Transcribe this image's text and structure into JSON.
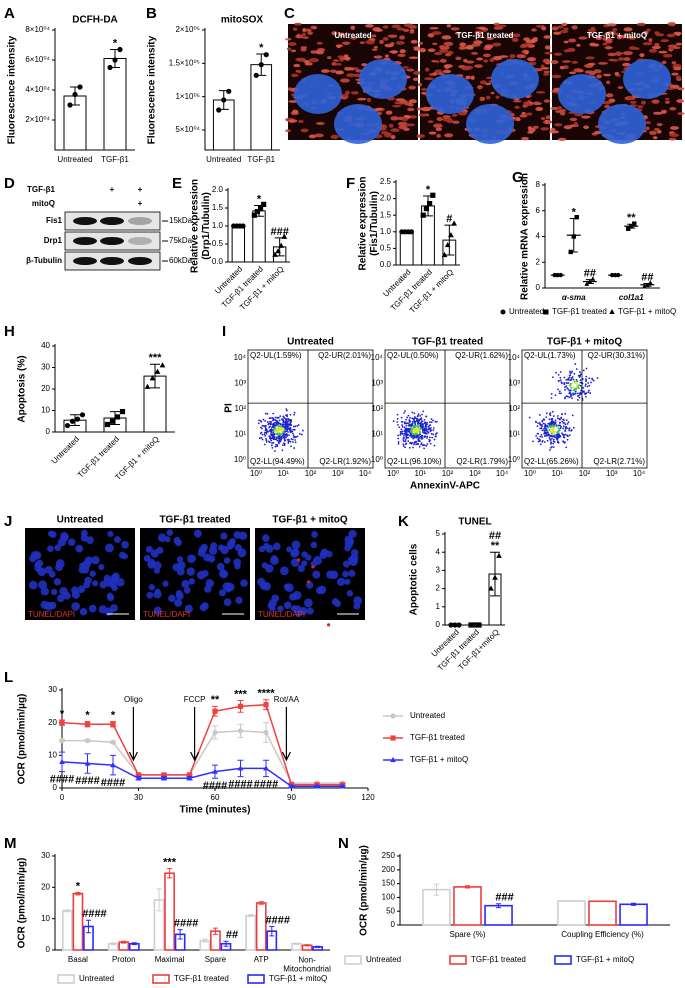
{
  "chart_data": [
    {
      "type": "bar",
      "panel": "A",
      "title": "DCFH-DA",
      "ylabel": "Fluorescence intensity",
      "categories": [
        "Untreated",
        "TGF-β1"
      ],
      "values": [
        36000,
        61000
      ],
      "errors": [
        6000,
        6000
      ],
      "points": [
        [
          30000,
          37000,
          42000
        ],
        [
          55000,
          60000,
          67000
        ]
      ],
      "markers": [
        "circle",
        "circle"
      ],
      "annotations": [
        null,
        "*"
      ],
      "ylim": [
        0,
        80000
      ],
      "yticks": [
        {
          "value": 20000,
          "label": "2×10⁰⁴"
        },
        {
          "value": 40000,
          "label": "4×10⁰⁴"
        },
        {
          "value": 60000,
          "label": "6×10⁰⁴"
        },
        {
          "value": 80000,
          "label": "8×10⁰⁴"
        }
      ],
      "color": "#000000"
    },
    {
      "type": "bar",
      "panel": "B",
      "title": "mitoSOX",
      "ylabel": "Fluorescence intensity",
      "categories": [
        "Untreated",
        "TGF-β1"
      ],
      "values": [
        95000,
        148000
      ],
      "errors": [
        14000,
        16000
      ],
      "points": [
        [
          80000,
          95000,
          108000
        ],
        [
          132000,
          148000,
          163000
        ]
      ],
      "markers": [
        "circle",
        "circle"
      ],
      "annotations": [
        null,
        "*"
      ],
      "ylim": [
        20000,
        200000
      ],
      "yticks": [
        {
          "value": 50000,
          "label": "5×10⁰⁴"
        },
        {
          "value": 100000,
          "label": "1×10⁰⁵"
        },
        {
          "value": 150000,
          "label": "1.5×10⁰⁵"
        },
        {
          "value": 200000,
          "label": "2×10⁰⁵"
        }
      ],
      "color": "#000000"
    },
    {
      "type": "bar",
      "panel": "E",
      "ylabel": "Relative expression\n(Drp1/Tubulin)",
      "categories": [
        "Untreated",
        "TGF-β1 treated",
        "TGF-β1 + mitoQ"
      ],
      "values": [
        1,
        1.42,
        0.42
      ],
      "errors": [
        0,
        0.15,
        0.25
      ],
      "points": [
        [
          1,
          1,
          1,
          1
        ],
        [
          1.3,
          1.4,
          1.5,
          1.6
        ],
        [
          0.2,
          0.3,
          0.45,
          0.7
        ]
      ],
      "markers": [
        "circle",
        "square",
        "triangle"
      ],
      "annotations": [
        null,
        "*",
        "###"
      ],
      "ylim": [
        0,
        2
      ],
      "yticks": [
        {
          "value": 0,
          "label": "0.0"
        },
        0.5,
        {
          "value": 1,
          "label": "1.0"
        },
        1.5,
        {
          "value": 2,
          "label": "2.0"
        }
      ],
      "color": "#000000"
    },
    {
      "type": "bar",
      "panel": "F",
      "ylabel": "Relative expression\n(Fis1/Tubulin)",
      "categories": [
        "Untreated",
        "TGF-β1 treated",
        "TGF-β1 + mitoQ"
      ],
      "values": [
        1,
        1.78,
        0.75
      ],
      "errors": [
        0,
        0.3,
        0.45
      ],
      "points": [
        [
          1,
          1,
          1,
          1
        ],
        [
          1.5,
          1.7,
          1.85,
          2.1
        ],
        [
          0.3,
          0.6,
          0.9,
          1.25
        ]
      ],
      "markers": [
        "circle",
        "square",
        "triangle"
      ],
      "annotations": [
        null,
        "*",
        "#"
      ],
      "ylim": [
        0,
        2.5
      ],
      "yticks": [
        {
          "value": 0,
          "label": "0.0"
        },
        0.5,
        {
          "value": 1,
          "label": "1.0"
        },
        1.5,
        {
          "value": 2,
          "label": "2.0"
        },
        2.5
      ],
      "color": "#000000"
    },
    {
      "type": "dot",
      "panel": "G",
      "ylabel": "Relative mRNA expression",
      "categories": [
        "α-sma",
        "col1a1"
      ],
      "series": [
        {
          "name": "Untreated",
          "color": "#000000",
          "marker": "circle",
          "values": [
            1,
            1
          ],
          "errors": [
            0,
            0
          ],
          "points": [
            [
              1,
              1,
              1
            ],
            [
              1,
              1,
              1
            ]
          ],
          "annotations": [
            null,
            null
          ]
        },
        {
          "name": "TGF-β1 treated",
          "color": "#000000",
          "marker": "square",
          "values": [
            4.1,
            4.8
          ],
          "errors": [
            1.3,
            0.15
          ],
          "points": [
            [
              2.8,
              4,
              5.5
            ],
            [
              4.6,
              4.8,
              5
            ]
          ],
          "annotations": [
            "*",
            "**"
          ]
        },
        {
          "name": "TGF-β1 + mitoQ",
          "color": "#000000",
          "marker": "triangle",
          "values": [
            0.5,
            0.25
          ],
          "errors": [
            0.15,
            0.1
          ],
          "points": [
            [
              0.3,
              0.5,
              0.7
            ],
            [
              0.1,
              0.2,
              0.4
            ]
          ],
          "annotations": [
            "##",
            "##"
          ]
        }
      ],
      "ylim": [
        0,
        8
      ],
      "yticks": [
        0,
        2,
        4,
        6,
        8
      ]
    },
    {
      "type": "bar",
      "panel": "H",
      "ylabel": "Apoptosis (%)",
      "categories": [
        "Untreated",
        "TGF-β1 treated",
        "TGF-β1 + mitoQ"
      ],
      "values": [
        5.5,
        6.5,
        26
      ],
      "errors": [
        2.5,
        3,
        5.5
      ],
      "points": [
        [
          3,
          5,
          6,
          8
        ],
        [
          3.5,
          5,
          7,
          9.5
        ],
        [
          21,
          25,
          28,
          31
        ]
      ],
      "markers": [
        "circle",
        "square",
        "triangle"
      ],
      "annotations": [
        null,
        null,
        "***"
      ],
      "ylim": [
        0,
        40
      ],
      "yticks": [
        0,
        10,
        20,
        30,
        40
      ],
      "color": "#000000"
    },
    {
      "type": "bar",
      "panel": "K",
      "title": "TUNEL",
      "ylabel": "Apoptotic cells",
      "categories": [
        "Untreated",
        "TGF-β1 treated",
        "TGF-β1+mitoQ"
      ],
      "values": [
        0,
        0,
        2.8
      ],
      "errors": [
        0,
        0,
        1.2
      ],
      "points": [
        [
          0,
          0,
          0
        ],
        [
          0,
          0,
          0
        ],
        [
          2,
          2.6,
          3.8
        ]
      ],
      "markers": [
        "circle",
        "square",
        "triangle"
      ],
      "annotations": [
        null,
        null,
        [
          "##",
          "**"
        ]
      ],
      "ylim": [
        0,
        5
      ],
      "yticks": [
        0,
        1,
        2,
        3,
        4,
        5
      ],
      "color": "#000000"
    },
    {
      "type": "line",
      "panel": "L",
      "xlabel": "Time (minutes)",
      "ylabel": "OCR (pmol/min/µg)",
      "x": [
        0,
        10,
        20,
        30,
        40,
        50,
        60,
        70,
        80,
        90,
        100,
        110
      ],
      "series": [
        {
          "name": "Untreated",
          "color": "#c8c8c8",
          "marker": "circle",
          "values": [
            14.5,
            14.5,
            14,
            4,
            4,
            4,
            17,
            17.5,
            17,
            1.5,
            1.5,
            1.5
          ],
          "errors": [
            0.3,
            0.3,
            0.3,
            0.2,
            0.2,
            0.2,
            2,
            2,
            3,
            0.2,
            0.2,
            0.2
          ],
          "annotations": [
            null,
            null,
            null,
            null,
            null,
            null,
            null,
            null,
            null,
            null,
            null,
            null
          ]
        },
        {
          "name": "TGF-β1 treated",
          "color": "#f04040",
          "marker": "square",
          "values": [
            20,
            19.5,
            19.5,
            4,
            4,
            4,
            23.5,
            25,
            25.5,
            1,
            1,
            1
          ],
          "errors": [
            0.8,
            0.8,
            0.8,
            0.3,
            0.3,
            0.3,
            1.5,
            1.8,
            1.5,
            0.3,
            0.3,
            0.3
          ],
          "annotations": [
            "*",
            "*",
            "*",
            null,
            null,
            null,
            "**",
            "***",
            "****",
            null,
            null,
            null
          ]
        },
        {
          "name": "TGF-β1 + mitoQ",
          "color": "#3030ff",
          "marker": "triangle",
          "values": [
            8,
            7.5,
            7,
            3,
            3,
            3,
            5,
            6,
            6,
            0.5,
            0.5,
            0.5
          ],
          "errors": [
            3,
            3,
            3,
            0.5,
            0.5,
            0.5,
            2,
            2.5,
            2.5,
            0.3,
            0.3,
            0.3
          ],
          "annotations": [
            "####",
            "####",
            "####",
            null,
            null,
            null,
            "####",
            "####",
            "####",
            null,
            null,
            null
          ]
        }
      ],
      "injections": [
        {
          "label": "Oligo",
          "x": 28
        },
        {
          "label": "FCCP",
          "x": 52
        },
        {
          "label": "Rot/AA",
          "x": 88
        }
      ],
      "xlim": [
        0,
        120
      ],
      "xticks": [
        0,
        30,
        60,
        90,
        120
      ],
      "ylim": [
        0,
        30
      ],
      "yticks": [
        0,
        10,
        20,
        30
      ]
    },
    {
      "type": "grouped_bar",
      "panel": "M",
      "ylabel": "OCR (pmol/min/µg)",
      "categories": [
        "Basal",
        "Proton",
        "Maximal",
        "Spare",
        "ATP",
        "Non-\nMitochondrial"
      ],
      "series": [
        {
          "name": "Untreated",
          "color": "#cfcfcf",
          "values": [
            12.5,
            2,
            16,
            3,
            11,
            2
          ],
          "errors": [
            0.3,
            0.3,
            3.5,
            0.5,
            0.3,
            0.2
          ],
          "annotations": [
            null,
            null,
            null,
            null,
            null,
            null
          ]
        },
        {
          "name": "TGF-β1 treated",
          "color": "#f03c3c",
          "values": [
            18,
            2.5,
            24.5,
            6,
            15,
            1.5
          ],
          "errors": [
            0.4,
            0.3,
            1.5,
            1,
            0.4,
            0.2
          ],
          "annotations": [
            "*",
            null,
            "***",
            null,
            null,
            null
          ]
        },
        {
          "name": "TGF-β1 + mitoQ",
          "color": "#2a2aff",
          "values": [
            7.5,
            2,
            5,
            2,
            6,
            1
          ],
          "errors": [
            2,
            0.3,
            1.5,
            0.8,
            1.5,
            0.2
          ],
          "annotations": [
            "####",
            null,
            "####",
            "##",
            "####",
            null
          ]
        }
      ],
      "ylim": [
        0,
        30
      ],
      "yticks": [
        0,
        10,
        20,
        30
      ]
    },
    {
      "type": "grouped_bar",
      "panel": "N",
      "ylabel": "OCR (pmol/min/µg)",
      "categories": [
        "Spare (%)",
        "Coupling Efficiency (%)"
      ],
      "series": [
        {
          "name": "Untreated",
          "color": "#cfcfcf",
          "values": [
            128,
            87
          ],
          "errors": [
            20,
            0
          ],
          "annotations": [
            null,
            null
          ]
        },
        {
          "name": "TGF-β1 treated",
          "color": "#f03c3c",
          "values": [
            138,
            86
          ],
          "errors": [
            4,
            0
          ],
          "annotations": [
            null,
            null
          ]
        },
        {
          "name": "TGF-β1 + mitoQ",
          "color": "#2a2aff",
          "values": [
            70,
            75
          ],
          "errors": [
            7,
            4
          ],
          "annotations": [
            "###",
            null
          ]
        }
      ],
      "ylim": [
        0,
        250
      ],
      "yticks": [
        0,
        50,
        100,
        150,
        200,
        250
      ]
    }
  ],
  "panel_C": {
    "label": "C",
    "captions": [
      "Untreated",
      "TGF-β1 treated",
      "TGF-β1 + mitoQ"
    ]
  },
  "panel_D": {
    "label": "D",
    "treatments": [
      {
        "name": "TGF-β1",
        "signs": [
          null,
          "+",
          "+"
        ]
      },
      {
        "name": "mitoQ",
        "signs": [
          null,
          null,
          "+"
        ]
      }
    ],
    "bands": [
      {
        "name": "Fis1",
        "size": "15kDa"
      },
      {
        "name": "Drp1",
        "size": "75kDa"
      },
      {
        "name": "β-Tubulin",
        "size": "60kDa"
      }
    ]
  },
  "panel_I": {
    "label": "I",
    "titles": [
      "Untreated",
      "TGF-β1 treated",
      "TGF-β1 + mitoQ"
    ],
    "ylabel": "PI",
    "xlabel": "AnnexinV-APC",
    "ticks": [
      "10⁰",
      "10¹",
      "10²",
      "10³",
      "10⁴"
    ],
    "quadrants": [
      [
        "Q2-UL(1.59%)",
        "Q2-UR(2.01%)",
        "Q2-LL(94.49%)",
        "Q2-LR(1.92%)"
      ],
      [
        "Q2-UL(0.50%)",
        "Q2-UR(1.62%)",
        "Q2-LL(96.10%)",
        "Q2-LR(1.79%)"
      ],
      [
        "Q2-UL(1.73%)",
        "Q2-UR(30.31%)",
        "Q2-LL(65.26%)",
        "Q2-LR(2.71%)"
      ]
    ]
  },
  "panel_J": {
    "label": "J",
    "titles": [
      "Untreated",
      "TGF-β1 treated",
      "TGF-β1 + mitoQ"
    ],
    "stain_label": "TUNEL/DAPI"
  }
}
